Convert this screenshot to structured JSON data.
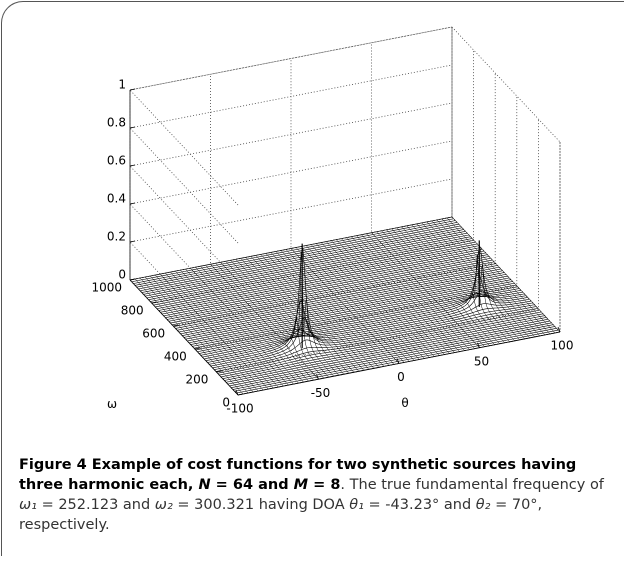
{
  "chart_data": {
    "type": "surface3d",
    "xlabel": "θ",
    "ylabel": "ω",
    "xlim": [
      -100,
      100
    ],
    "xticks": [
      -100,
      -50,
      0,
      50,
      100
    ],
    "ylim": [
      0,
      1000
    ],
    "yticks": [
      0,
      200,
      400,
      600,
      800,
      1000
    ],
    "zlim": [
      0,
      1
    ],
    "zticks": [
      0,
      0.2,
      0.4,
      0.6,
      0.8,
      1
    ],
    "grid": true,
    "color": "#000000",
    "peaks": [
      {
        "x": -43.23,
        "y": 252.123,
        "z": 0.55
      },
      {
        "x": 70,
        "y": 300.321,
        "z": 0.35
      }
    ]
  },
  "caption": {
    "label": "Figure 4",
    "title": [
      "Example of cost functions for two synthetic sources having three harmonic each, ",
      "N",
      " = 64 and ",
      "M",
      " = 8"
    ],
    "text": [
      "The true fundamental frequency of ",
      "ω₁",
      " = 252.123 and ",
      "ω₂",
      " = 300.321 having DOA ",
      "θ₁",
      " = -43.23° and ",
      "θ₂",
      " = 70°, respectively."
    ]
  }
}
